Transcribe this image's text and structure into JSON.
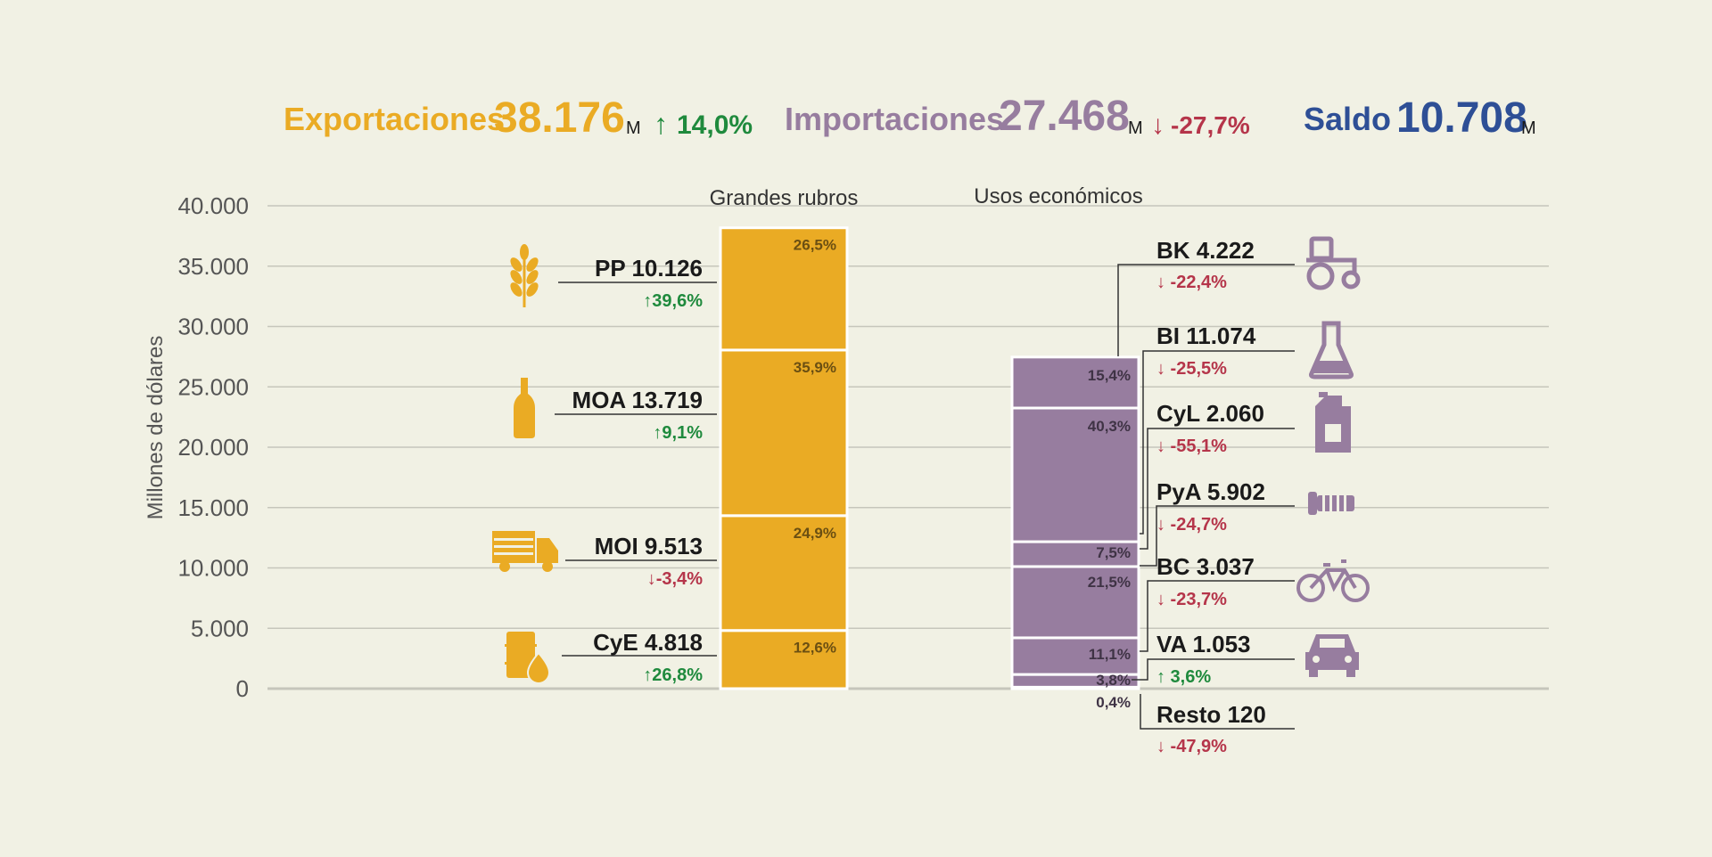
{
  "header": {
    "exports": {
      "label": "Exportaciones",
      "value": "38.176",
      "unit": "M",
      "change": "14,0%",
      "direction": "up"
    },
    "imports": {
      "label": "Importaciones",
      "value": "27.468",
      "unit": "M",
      "change": "-27,7%",
      "direction": "down"
    },
    "balance": {
      "label": "Saldo",
      "value": "10.708",
      "unit": "M"
    }
  },
  "colors": {
    "exports": "#eaab24",
    "imports": "#977d9f",
    "balance": "#2e4f96",
    "up": "#1f8a3d",
    "down": "#b5354a",
    "grid": "#c6c6bb",
    "axis_text": "#555555",
    "text": "#1a1a1a",
    "background": "#f1f1e4"
  },
  "chart_data": {
    "type": "bar",
    "stacked": true,
    "ylabel": "Millones de dólares",
    "ylim": [
      0,
      40000
    ],
    "yticks": [
      "0",
      "5.000",
      "10.000",
      "15.000",
      "20.000",
      "25.000",
      "30.000",
      "35.000",
      "40.000"
    ],
    "grid": true,
    "groups": [
      {
        "title": "Grandes rubros",
        "color": "#eaab24",
        "segments": [
          {
            "name": "CyE",
            "value": 4818,
            "value_label": "4.818",
            "share": "12,6%",
            "change": "26,8%",
            "direction": "up",
            "icon": "fuel-drum-icon"
          },
          {
            "name": "MOI",
            "value": 9513,
            "value_label": "9.513",
            "share": "24,9%",
            "change": "-3,4%",
            "direction": "down",
            "icon": "truck-icon"
          },
          {
            "name": "MOA",
            "value": 13719,
            "value_label": "13.719",
            "share": "35,9%",
            "change": "9,1%",
            "direction": "up",
            "icon": "bottle-icon"
          },
          {
            "name": "PP",
            "value": 10126,
            "value_label": "10.126",
            "share": "26,5%",
            "change": "39,6%",
            "direction": "up",
            "icon": "wheat-icon"
          }
        ]
      },
      {
        "title": "Usos económicos",
        "color": "#977d9f",
        "segments": [
          {
            "name": "Resto",
            "value": 120,
            "value_label": "120",
            "share": "0,4%",
            "change": "-47,9%",
            "direction": "down",
            "icon": ""
          },
          {
            "name": "VA",
            "value": 1053,
            "value_label": "1.053",
            "share": "3,8%",
            "change": "3,6%",
            "direction": "up",
            "icon": "car-icon"
          },
          {
            "name": "BC",
            "value": 3037,
            "value_label": "3.037",
            "share": "11,1%",
            "change": "-23,7%",
            "direction": "down",
            "icon": "bicycle-icon"
          },
          {
            "name": "PyA",
            "value": 5902,
            "value_label": "5.902",
            "share": "21,5%",
            "change": "-24,7%",
            "direction": "down",
            "icon": "screw-icon"
          },
          {
            "name": "CyL",
            "value": 2060,
            "value_label": "2.060",
            "share": "7,5%",
            "change": "-55,1%",
            "direction": "down",
            "icon": "jerrycan-icon"
          },
          {
            "name": "BI",
            "value": 11074,
            "value_label": "11.074",
            "share": "40,3%",
            "change": "-25,5%",
            "direction": "down",
            "icon": "flask-icon"
          },
          {
            "name": "BK",
            "value": 4222,
            "value_label": "4.222",
            "share": "15,4%",
            "change": "-22,4%",
            "direction": "down",
            "icon": "tractor-icon"
          }
        ]
      }
    ]
  }
}
